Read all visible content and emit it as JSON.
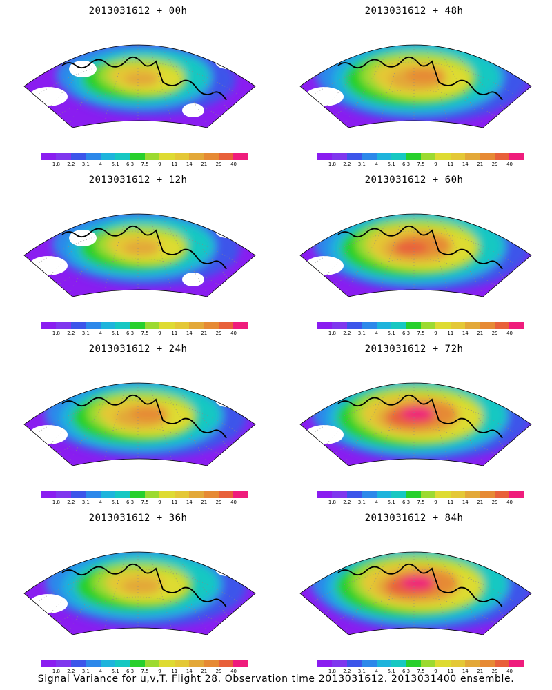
{
  "colorbar": {
    "colors": [
      "#8a1df0",
      "#7f37ee",
      "#3c55ea",
      "#2c88ea",
      "#1eb4dc",
      "#16c8c2",
      "#28d02c",
      "#9cda30",
      "#dedb32",
      "#e4c836",
      "#e3a838",
      "#e68a34",
      "#e8603a",
      "#ef1c7c"
    ],
    "tick_labels": [
      "1.8",
      "2.2",
      "3.1",
      "4",
      "5.1",
      "6.3",
      "7.5",
      "9",
      "11",
      "14",
      "21",
      "29",
      "40"
    ]
  },
  "panels": [
    {
      "title": "2013031612 + 00h",
      "max_level": 10,
      "coverage": 0.55
    },
    {
      "title": "2013031612 + 48h",
      "max_level": 11,
      "coverage": 0.92
    },
    {
      "title": "2013031612 + 12h",
      "max_level": 10,
      "coverage": 0.65
    },
    {
      "title": "2013031612 + 60h",
      "max_level": 12,
      "coverage": 0.93
    },
    {
      "title": "2013031612 + 24h",
      "max_level": 11,
      "coverage": 0.8
    },
    {
      "title": "2013031612 + 72h",
      "max_level": 13,
      "coverage": 0.95
    },
    {
      "title": "2013031612 + 36h",
      "max_level": 10,
      "coverage": 0.82
    },
    {
      "title": "2013031612 + 84h",
      "max_level": 13,
      "coverage": 0.98
    }
  ],
  "caption": "Signal Variance for u,v,T. Flight 28. Observation time 2013031612. 2013031400 ensemble."
}
